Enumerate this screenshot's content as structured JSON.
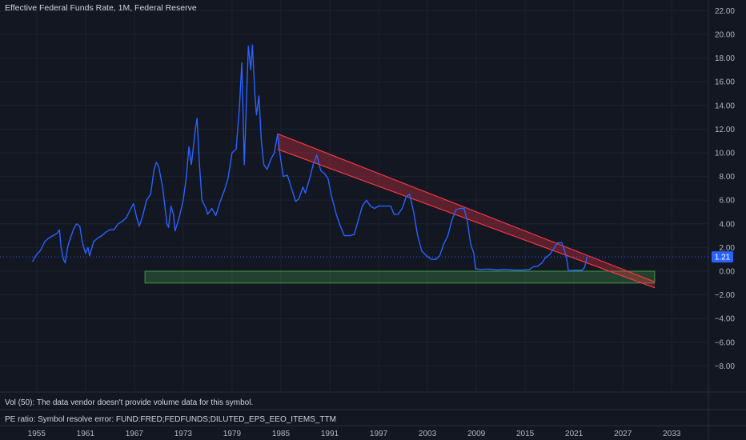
{
  "header": {
    "title": "Effective Federal Funds Rate, 1M, Federal Reserve"
  },
  "panes": {
    "volume_text": "Vol (50): The data vendor doesn't provide volume data for this symbol.",
    "pe_text": "PE ratio: Symbol resolve error: FUND:FRED;FEDFUNDS;DILUTED_EPS_EEO_ITEMS_TTM"
  },
  "colors": {
    "background": "#131722",
    "line": "#2962ff",
    "red_channel": "#f23645",
    "green_zone": "#4caf50",
    "last_price_bg": "#2962ff"
  },
  "chart_data": {
    "type": "line",
    "title": "Effective Federal Funds Rate, 1M, Federal Reserve",
    "xlabel": "",
    "ylabel": "",
    "xlim": [
      1950.5,
      2037.5
    ],
    "ylim": [
      -10.2,
      22.9
    ],
    "x_ticks": [
      "1955",
      "1961",
      "1967",
      "1973",
      "1979",
      "1985",
      "1991",
      "1997",
      "2003",
      "2009",
      "2015",
      "2021",
      "2027",
      "2033"
    ],
    "x_tick_values": [
      1955,
      1961,
      1967,
      1973,
      1979,
      1985,
      1991,
      1997,
      2003,
      2009,
      2015,
      2021,
      2027,
      2033
    ],
    "y_ticks": [
      "22.00",
      "20.00",
      "18.00",
      "16.00",
      "14.00",
      "12.00",
      "10.00",
      "8.00",
      "6.00",
      "4.00",
      "2.00",
      "0.00",
      "−2.00",
      "−4.00",
      "−6.00",
      "−8.00"
    ],
    "y_tick_values": [
      22,
      20,
      18,
      16,
      14,
      12,
      10,
      8,
      6,
      4,
      2,
      0,
      -2,
      -4,
      -6,
      -8
    ],
    "last_value": 1.21,
    "last_value_label": "1.21",
    "series": [
      {
        "points": [
          [
            1954.5,
            0.8
          ],
          [
            1954.8,
            1.2
          ],
          [
            1955.0,
            1.4
          ],
          [
            1955.5,
            1.8
          ],
          [
            1956.0,
            2.5
          ],
          [
            1956.5,
            2.8
          ],
          [
            1957.0,
            3.0
          ],
          [
            1957.5,
            3.2
          ],
          [
            1957.8,
            3.5
          ],
          [
            1958.0,
            2.0
          ],
          [
            1958.3,
            1.0
          ],
          [
            1958.5,
            0.7
          ],
          [
            1958.8,
            2.0
          ],
          [
            1959.0,
            2.5
          ],
          [
            1959.5,
            3.5
          ],
          [
            1959.9,
            4.0
          ],
          [
            1960.3,
            3.8
          ],
          [
            1960.6,
            2.5
          ],
          [
            1961.0,
            1.5
          ],
          [
            1961.3,
            2.0
          ],
          [
            1961.5,
            1.3
          ],
          [
            1962.0,
            2.5
          ],
          [
            1962.5,
            2.8
          ],
          [
            1963.0,
            3.0
          ],
          [
            1963.5,
            3.3
          ],
          [
            1964.0,
            3.5
          ],
          [
            1964.5,
            3.5
          ],
          [
            1965.0,
            4.0
          ],
          [
            1965.5,
            4.2
          ],
          [
            1966.0,
            4.5
          ],
          [
            1966.5,
            5.2
          ],
          [
            1966.9,
            5.7
          ],
          [
            1967.3,
            4.5
          ],
          [
            1967.6,
            3.8
          ],
          [
            1968.0,
            4.6
          ],
          [
            1968.5,
            6.0
          ],
          [
            1969.0,
            6.5
          ],
          [
            1969.4,
            8.5
          ],
          [
            1969.7,
            9.2
          ],
          [
            1970.0,
            8.8
          ],
          [
            1970.5,
            7.0
          ],
          [
            1971.0,
            4.0
          ],
          [
            1971.2,
            3.7
          ],
          [
            1971.5,
            5.5
          ],
          [
            1971.8,
            4.8
          ],
          [
            1972.0,
            3.4
          ],
          [
            1972.5,
            4.5
          ],
          [
            1973.0,
            6.0
          ],
          [
            1973.4,
            8.0
          ],
          [
            1973.7,
            10.5
          ],
          [
            1974.0,
            9.0
          ],
          [
            1974.5,
            12.0
          ],
          [
            1974.7,
            12.9
          ],
          [
            1975.0,
            9.0
          ],
          [
            1975.3,
            6.0
          ],
          [
            1975.8,
            5.3
          ],
          [
            1976.0,
            4.8
          ],
          [
            1976.5,
            5.3
          ],
          [
            1977.0,
            4.7
          ],
          [
            1977.5,
            5.8
          ],
          [
            1978.0,
            6.7
          ],
          [
            1978.5,
            7.8
          ],
          [
            1979.0,
            10.0
          ],
          [
            1979.5,
            10.3
          ],
          [
            1979.9,
            13.8
          ],
          [
            1980.2,
            17.6
          ],
          [
            1980.5,
            9.0
          ],
          [
            1980.8,
            15.0
          ],
          [
            1981.0,
            19.0
          ],
          [
            1981.3,
            17.0
          ],
          [
            1981.5,
            19.1
          ],
          [
            1981.8,
            15.0
          ],
          [
            1982.0,
            13.2
          ],
          [
            1982.3,
            14.8
          ],
          [
            1982.6,
            11.0
          ],
          [
            1982.9,
            9.0
          ],
          [
            1983.3,
            8.6
          ],
          [
            1983.8,
            9.5
          ],
          [
            1984.2,
            10.0
          ],
          [
            1984.6,
            11.6
          ],
          [
            1984.9,
            9.8
          ],
          [
            1985.3,
            8.0
          ],
          [
            1985.8,
            8.1
          ],
          [
            1986.3,
            7.0
          ],
          [
            1986.8,
            5.9
          ],
          [
            1987.2,
            6.1
          ],
          [
            1987.7,
            7.1
          ],
          [
            1988.0,
            6.6
          ],
          [
            1988.6,
            8.0
          ],
          [
            1989.0,
            9.1
          ],
          [
            1989.4,
            9.8
          ],
          [
            1989.9,
            8.5
          ],
          [
            1990.4,
            8.2
          ],
          [
            1990.8,
            7.8
          ],
          [
            1991.2,
            6.4
          ],
          [
            1991.8,
            4.8
          ],
          [
            1992.3,
            3.8
          ],
          [
            1992.8,
            3.0
          ],
          [
            1993.5,
            3.0
          ],
          [
            1994.0,
            3.1
          ],
          [
            1994.5,
            4.3
          ],
          [
            1995.0,
            5.5
          ],
          [
            1995.5,
            6.0
          ],
          [
            1996.0,
            5.5
          ],
          [
            1996.5,
            5.3
          ],
          [
            1997.0,
            5.5
          ],
          [
            1997.5,
            5.5
          ],
          [
            1998.0,
            5.5
          ],
          [
            1998.5,
            5.5
          ],
          [
            1998.9,
            4.8
          ],
          [
            1999.4,
            4.8
          ],
          [
            1999.9,
            5.3
          ],
          [
            2000.4,
            6.3
          ],
          [
            2000.8,
            6.5
          ],
          [
            2001.3,
            5.0
          ],
          [
            2001.8,
            3.0
          ],
          [
            2002.3,
            1.7
          ],
          [
            2002.9,
            1.3
          ],
          [
            2003.5,
            1.0
          ],
          [
            2004.0,
            1.0
          ],
          [
            2004.5,
            1.3
          ],
          [
            2005.0,
            2.3
          ],
          [
            2005.5,
            3.0
          ],
          [
            2006.0,
            4.3
          ],
          [
            2006.5,
            5.2
          ],
          [
            2007.0,
            5.3
          ],
          [
            2007.5,
            5.3
          ],
          [
            2007.9,
            4.2
          ],
          [
            2008.3,
            2.3
          ],
          [
            2008.7,
            1.5
          ],
          [
            2008.9,
            0.2
          ],
          [
            2009.5,
            0.15
          ],
          [
            2010.5,
            0.18
          ],
          [
            2011.5,
            0.1
          ],
          [
            2012.5,
            0.15
          ],
          [
            2013.5,
            0.1
          ],
          [
            2014.5,
            0.09
          ],
          [
            2015.5,
            0.13
          ],
          [
            2016.0,
            0.38
          ],
          [
            2016.5,
            0.4
          ],
          [
            2017.0,
            0.66
          ],
          [
            2017.5,
            1.15
          ],
          [
            2018.0,
            1.4
          ],
          [
            2018.5,
            1.9
          ],
          [
            2019.0,
            2.4
          ],
          [
            2019.5,
            2.4
          ],
          [
            2019.9,
            1.6
          ],
          [
            2020.2,
            0.65
          ],
          [
            2020.3,
            0.05
          ],
          [
            2021.0,
            0.08
          ],
          [
            2021.8,
            0.08
          ],
          [
            2022.0,
            0.08
          ],
          [
            2022.3,
            0.33
          ],
          [
            2022.6,
            1.21
          ]
        ]
      }
    ],
    "annotations": {
      "channel": {
        "upper": [
          [
            1984.6,
            11.6
          ],
          [
            2030.9,
            -0.9
          ]
        ],
        "lower": [
          [
            1984.6,
            10.3
          ],
          [
            2030.9,
            -1.4
          ]
        ]
      },
      "zone": {
        "x": [
          1968.3,
          2030.9
        ],
        "y": [
          -1.0,
          0.0
        ]
      }
    }
  }
}
